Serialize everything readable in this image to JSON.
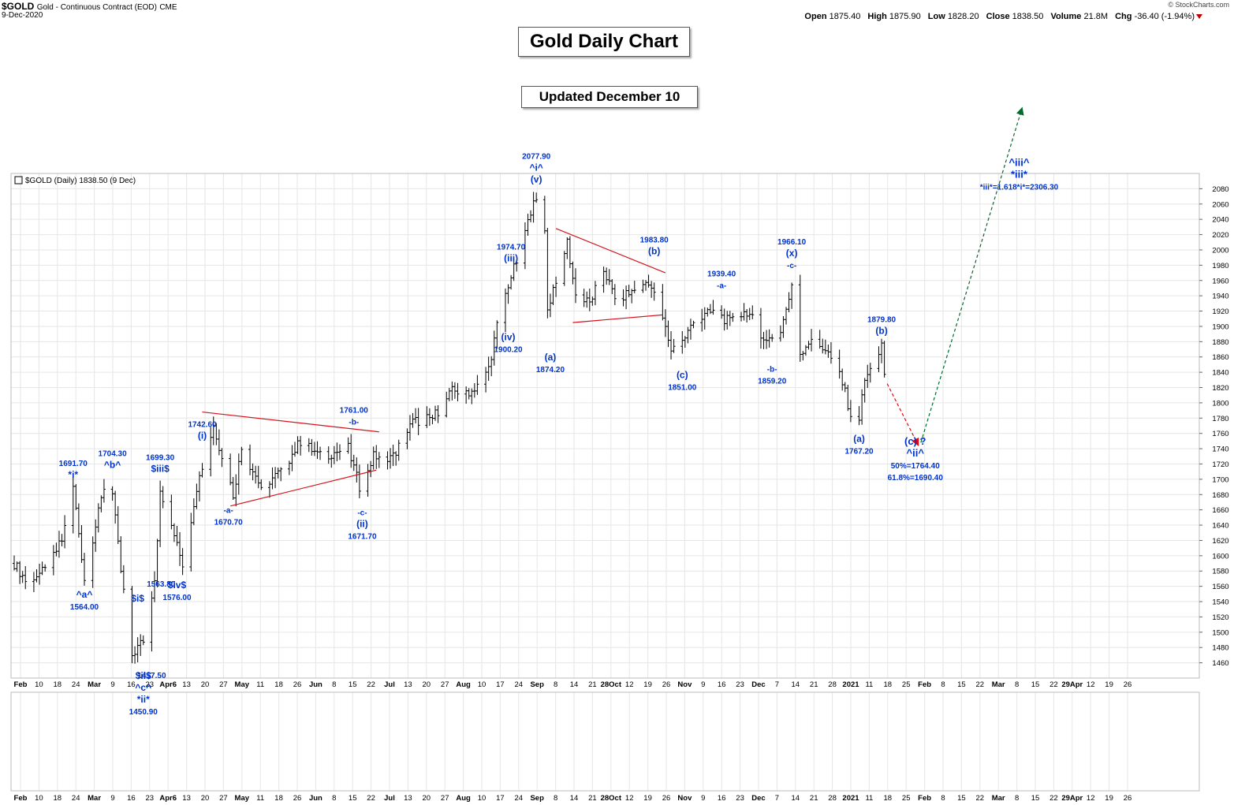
{
  "header": {
    "symbol": "$GOLD",
    "name": "Gold - Continuous Contract (EOD)",
    "exchange": "CME",
    "date": "9-Dec-2020",
    "watermark": "© StockCharts.com",
    "ohlc": [
      {
        "label": "Open",
        "value": "1875.40"
      },
      {
        "label": "High",
        "value": "1875.90"
      },
      {
        "label": "Low",
        "value": "1828.20"
      },
      {
        "label": "Close",
        "value": "1838.50"
      },
      {
        "label": "Volume",
        "value": "21.8M"
      },
      {
        "label": "Chg",
        "value": "-36.40 (-1.94%)"
      }
    ]
  },
  "titles": {
    "main": "Gold Daily Chart",
    "updated": "Updated December 10"
  },
  "chart_data": {
    "type": "ohlc",
    "legend": "$GOLD (Daily) 1838.50 (9 Dec)",
    "ylim": [
      1440,
      2100
    ],
    "y_ticks": [
      1460,
      1480,
      1500,
      1520,
      1540,
      1560,
      1580,
      1600,
      1620,
      1640,
      1660,
      1680,
      1700,
      1720,
      1740,
      1760,
      1780,
      1800,
      1820,
      1840,
      1860,
      1880,
      1900,
      1920,
      1940,
      1960,
      1980,
      2000,
      2020,
      2040,
      2060,
      2080
    ],
    "x_ticks": [
      "Feb",
      "10",
      "18",
      "24",
      "Mar",
      "9",
      "16",
      "23",
      "Apr6",
      "13",
      "20",
      "27",
      "May",
      "11",
      "18",
      "26",
      "Jun",
      "8",
      "15",
      "22",
      "Jul",
      "13",
      "20",
      "27",
      "Aug",
      "10",
      "17",
      "24",
      "Sep",
      "8",
      "14",
      "21",
      "28Oct",
      "12",
      "19",
      "26",
      "Nov",
      "9",
      "16",
      "23",
      "Dec",
      "7",
      "14",
      "21",
      "28",
      "2021",
      "11",
      "18",
      "25",
      "Feb",
      "8",
      "15",
      "22",
      "Mar",
      "8",
      "15",
      "22",
      "29Apr",
      "12",
      "19",
      "26"
    ],
    "anchors": [
      {
        "date": "2020-02-03",
        "price": 1590
      },
      {
        "date": "2020-02-07",
        "price": 1568
      },
      {
        "date": "2020-02-14",
        "price": 1580
      },
      {
        "date": "2020-02-20",
        "price": 1620
      },
      {
        "date": "2020-02-24",
        "price": 1690
      },
      {
        "date": "2020-02-28",
        "price": 1570
      },
      {
        "date": "2020-03-06",
        "price": 1690
      },
      {
        "date": "2020-03-09",
        "price": 1680
      },
      {
        "date": "2020-03-12",
        "price": 1580
      },
      {
        "date": "2020-03-16",
        "price": 1470
      },
      {
        "date": "2020-03-20",
        "price": 1490
      },
      {
        "date": "2020-03-24",
        "price": 1570
      },
      {
        "date": "2020-03-26",
        "price": 1680
      },
      {
        "date": "2020-04-01",
        "price": 1620
      },
      {
        "date": "2020-04-03",
        "price": 1590
      },
      {
        "date": "2020-04-08",
        "price": 1690
      },
      {
        "date": "2020-04-14",
        "price": 1770
      },
      {
        "date": "2020-04-21",
        "price": 1680
      },
      {
        "date": "2020-04-24",
        "price": 1740
      },
      {
        "date": "2020-05-01",
        "price": 1690
      },
      {
        "date": "2020-05-08",
        "price": 1710
      },
      {
        "date": "2020-05-15",
        "price": 1750
      },
      {
        "date": "2020-05-22",
        "price": 1730
      },
      {
        "date": "2020-06-01",
        "price": 1740
      },
      {
        "date": "2020-06-05",
        "price": 1690
      },
      {
        "date": "2020-06-10",
        "price": 1730
      },
      {
        "date": "2020-06-17",
        "price": 1730
      },
      {
        "date": "2020-06-24",
        "price": 1775
      },
      {
        "date": "2020-07-01",
        "price": 1780
      },
      {
        "date": "2020-07-08",
        "price": 1815
      },
      {
        "date": "2020-07-15",
        "price": 1815
      },
      {
        "date": "2020-07-21",
        "price": 1845
      },
      {
        "date": "2020-07-24",
        "price": 1900
      },
      {
        "date": "2020-07-28",
        "price": 1955
      },
      {
        "date": "2020-07-31",
        "price": 1985
      },
      {
        "date": "2020-08-04",
        "price": 2035
      },
      {
        "date": "2020-08-06",
        "price": 2070
      },
      {
        "date": "2020-08-10",
        "price": 2030
      },
      {
        "date": "2020-08-11",
        "price": 1920
      },
      {
        "date": "2020-08-13",
        "price": 1950
      },
      {
        "date": "2020-08-18",
        "price": 2010
      },
      {
        "date": "2020-08-21",
        "price": 1940
      },
      {
        "date": "2020-08-26",
        "price": 1930
      },
      {
        "date": "2020-08-31",
        "price": 1975
      },
      {
        "date": "2020-09-04",
        "price": 1935
      },
      {
        "date": "2020-09-10",
        "price": 1945
      },
      {
        "date": "2020-09-16",
        "price": 1960
      },
      {
        "date": "2020-09-21",
        "price": 1910
      },
      {
        "date": "2020-09-24",
        "price": 1870
      },
      {
        "date": "2020-09-28",
        "price": 1880
      },
      {
        "date": "2020-10-02",
        "price": 1905
      },
      {
        "date": "2020-10-09",
        "price": 1920
      },
      {
        "date": "2020-10-15",
        "price": 1905
      },
      {
        "date": "2020-10-21",
        "price": 1920
      },
      {
        "date": "2020-10-28",
        "price": 1880
      },
      {
        "date": "2020-11-02",
        "price": 1895
      },
      {
        "date": "2020-11-06",
        "price": 1950
      },
      {
        "date": "2020-11-09",
        "price": 1865
      },
      {
        "date": "2020-11-13",
        "price": 1885
      },
      {
        "date": "2020-11-18",
        "price": 1870
      },
      {
        "date": "2020-11-23",
        "price": 1840
      },
      {
        "date": "2020-11-27",
        "price": 1785
      },
      {
        "date": "2020-11-30",
        "price": 1780
      },
      {
        "date": "2020-12-02",
        "price": 1830
      },
      {
        "date": "2020-12-07",
        "price": 1860
      },
      {
        "date": "2020-12-08",
        "price": 1872
      },
      {
        "date": "2020-12-09",
        "price": 1838
      }
    ],
    "wave_labels": [
      {
        "date": "2020-02-24",
        "price": 1691.7,
        "lines": [
          "1691.70",
          "*i*"
        ],
        "pos": "above"
      },
      {
        "date": "2020-02-28",
        "price": 1564.0,
        "lines": [
          "^a^",
          "1564.00"
        ],
        "pos": "below"
      },
      {
        "date": "2020-03-09",
        "price": 1704.3,
        "lines": [
          "1704.30",
          "^b^"
        ],
        "pos": "above"
      },
      {
        "date": "2020-03-19",
        "price": 1563.8,
        "lines": [
          "1563.80"
        ],
        "pos": "right"
      },
      {
        "date": "2020-03-18",
        "price": 1540.0,
        "lines": [
          "$i$"
        ],
        "pos": "mid"
      },
      {
        "date": "2020-03-20",
        "price": 1457.5,
        "lines": [
          "$ii$",
          "^c^",
          "*ii*",
          "1450.90"
        ],
        "pos": "below"
      },
      {
        "date": "2020-03-23",
        "price": 1440.0,
        "lines": [
          "1457.50"
        ],
        "pos": "mid"
      },
      {
        "date": "2020-03-26",
        "price": 1699.3,
        "lines": [
          "1699.30",
          "$iii$"
        ],
        "pos": "above"
      },
      {
        "date": "2020-04-01",
        "price": 1576.0,
        "lines": [
          "$iv$",
          "1576.00"
        ],
        "pos": "below"
      },
      {
        "date": "2020-04-10",
        "price": 1742.6,
        "lines": [
          "1742.60",
          "(i)"
        ],
        "pos": "above"
      },
      {
        "date": "2020-04-21",
        "price": 1660.0,
        "lines": [
          "-a-",
          "1670.70"
        ],
        "pos": "below-left"
      },
      {
        "date": "2020-06-03",
        "price": 1761.0,
        "lines": [
          "1761.00",
          "-b-"
        ],
        "pos": "above"
      },
      {
        "date": "2020-06-06",
        "price": 1671.7,
        "lines": [
          "-c-",
          "(ii)",
          "1671.70"
        ],
        "pos": "below"
      },
      {
        "date": "2020-07-29",
        "price": 1974.7,
        "lines": [
          "1974.70",
          "(iii)"
        ],
        "pos": "above"
      },
      {
        "date": "2020-07-28",
        "price": 1900.2,
        "lines": [
          "(iv)",
          "1900.20"
        ],
        "pos": "below"
      },
      {
        "date": "2020-08-07",
        "price": 2077.9,
        "lines": [
          "2077.90",
          "^i^",
          "(v)"
        ],
        "pos": "above"
      },
      {
        "date": "2020-08-12",
        "price": 1874.2,
        "lines": [
          "(a)",
          "1874.20"
        ],
        "pos": "below"
      },
      {
        "date": "2020-09-18",
        "price": 1983.8,
        "lines": [
          "1983.80",
          "(b)"
        ],
        "pos": "above"
      },
      {
        "date": "2020-09-28",
        "price": 1851.0,
        "lines": [
          "(c)",
          "1851.00"
        ],
        "pos": "below"
      },
      {
        "date": "2020-10-12",
        "price": 1939.4,
        "lines": [
          "1939.40",
          "-a-"
        ],
        "pos": "above"
      },
      {
        "date": "2020-10-30",
        "price": 1859.2,
        "lines": [
          "-b-",
          "1859.20"
        ],
        "pos": "below"
      },
      {
        "date": "2020-11-06",
        "price": 1966.1,
        "lines": [
          "1966.10",
          "(x)",
          "-c-"
        ],
        "pos": "above"
      },
      {
        "date": "2020-11-30",
        "price": 1767.2,
        "lines": [
          "(a)",
          "1767.20"
        ],
        "pos": "below"
      },
      {
        "date": "2020-12-08",
        "price": 1879.8,
        "lines": [
          "1879.80",
          "(b)"
        ],
        "pos": "above"
      }
    ],
    "target_labels": [
      {
        "date": "2020-12-20",
        "price": 1745,
        "lines": [
          "(c) ?",
          "^ii^",
          "50%=1764.40",
          "61.8%=1690.40"
        ]
      },
      {
        "date": "2021-01-26",
        "price": 2110,
        "lines": [
          "^iii^",
          "*iii*",
          "*iii*=1.618*i*=2306.30"
        ]
      }
    ],
    "trendlines": [
      {
        "from": {
          "date": "2020-04-10",
          "price": 1788
        },
        "to": {
          "date": "2020-06-12",
          "price": 1762
        }
      },
      {
        "from": {
          "date": "2020-04-20",
          "price": 1665
        },
        "to": {
          "date": "2020-06-11",
          "price": 1712
        }
      },
      {
        "from": {
          "date": "2020-08-14",
          "price": 2028
        },
        "to": {
          "date": "2020-09-22",
          "price": 1970
        }
      },
      {
        "from": {
          "date": "2020-08-20",
          "price": 1905
        },
        "to": {
          "date": "2020-09-21",
          "price": 1915
        }
      }
    ],
    "projections": [
      {
        "color": "#e8000b",
        "from": {
          "date": "2020-12-10",
          "price": 1825
        },
        "to": {
          "date": "2020-12-21",
          "price": 1745
        }
      },
      {
        "color": "#006b2d",
        "from": {
          "date": "2020-12-22",
          "price": 1748
        },
        "to": {
          "date": "2021-01-27",
          "price": 2185
        }
      }
    ]
  }
}
